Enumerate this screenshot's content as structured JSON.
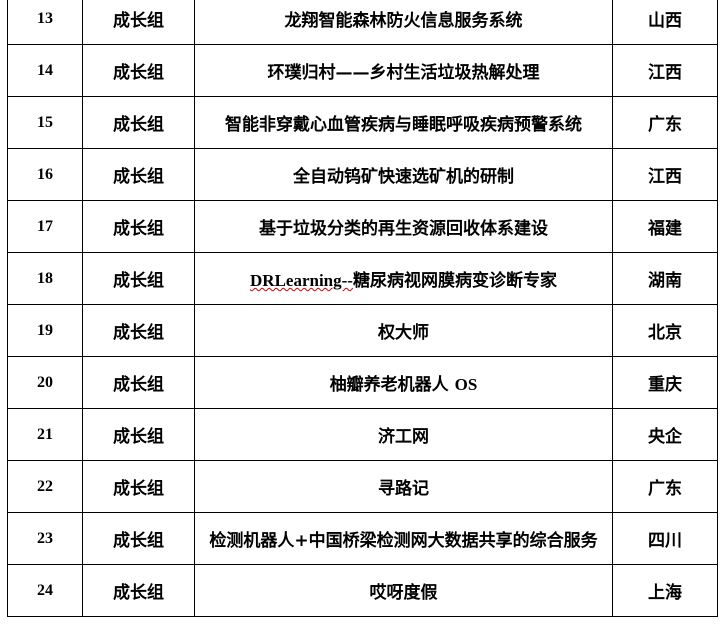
{
  "rows": [
    {
      "no": "13",
      "group": "成长组",
      "project": "龙翔智能森林防火信息服务系统",
      "region": "山西"
    },
    {
      "no": "14",
      "group": "成长组",
      "project": "环璞归村——乡村生活垃圾热解处理",
      "region": "江西"
    },
    {
      "no": "15",
      "group": "成长组",
      "project": "智能非穿戴心血管疾病与睡眠呼吸疾病预警系统",
      "region": "广东"
    },
    {
      "no": "16",
      "group": "成长组",
      "project": "全自动钨矿快速选矿机的研制",
      "region": "江西"
    },
    {
      "no": "17",
      "group": "成长组",
      "project": "基于垃圾分类的再生资源回收体系建设",
      "region": "福建"
    },
    {
      "no": "18",
      "group": "成长组",
      "project": "DRLearning--糖尿病视网膜病变诊断专家",
      "region": "湖南"
    },
    {
      "no": "19",
      "group": "成长组",
      "project": "权大师",
      "region": "北京"
    },
    {
      "no": "20",
      "group": "成长组",
      "project": "柚瓣养老机器人 OS",
      "region": "重庆"
    },
    {
      "no": "21",
      "group": "成长组",
      "project": "济工网",
      "region": "央企"
    },
    {
      "no": "22",
      "group": "成长组",
      "project": "寻路记",
      "region": "广东"
    },
    {
      "no": "23",
      "group": "成长组",
      "project": "检测机器人+中国桥梁检测网大数据共享的综合服务",
      "region": "四川"
    },
    {
      "no": "24",
      "group": "成长组",
      "project": "哎呀度假",
      "region": "上海"
    }
  ]
}
